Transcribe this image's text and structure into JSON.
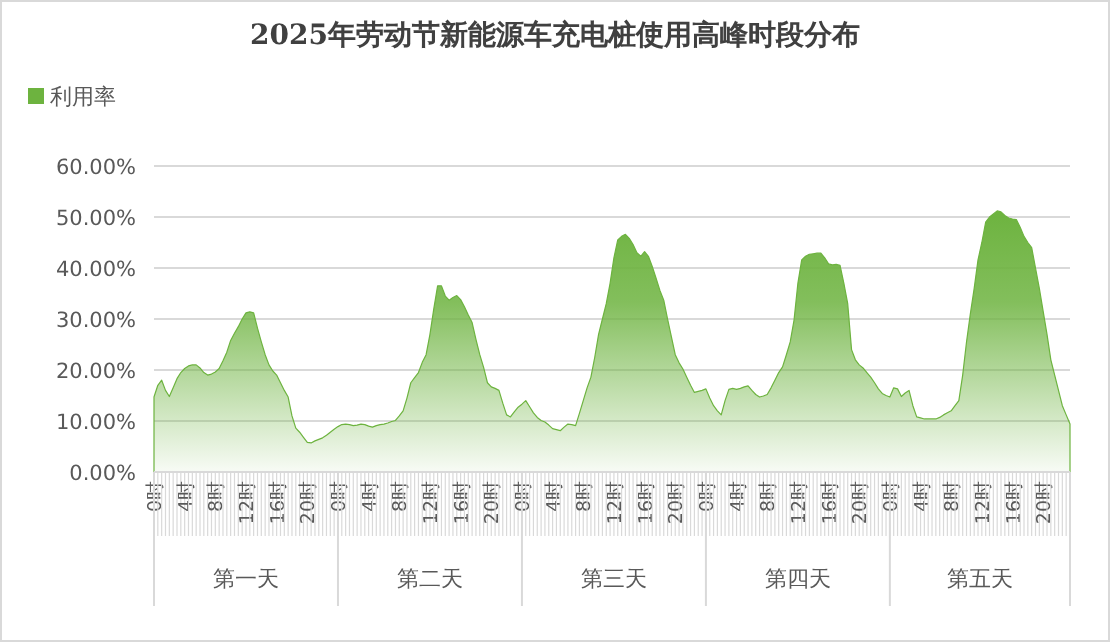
{
  "chart_data": {
    "type": "area",
    "title": "2025年劳动节新能源车充电桩使用高峰时段分布",
    "categories": [
      "0时",
      null,
      null,
      null,
      null,
      null,
      null,
      null,
      "4时",
      null,
      null,
      null,
      null,
      null,
      null,
      null,
      "8时",
      null,
      null,
      null,
      null,
      null,
      null,
      null,
      "12时",
      null,
      null,
      null,
      null,
      null,
      null,
      null,
      "16时",
      null,
      null,
      null,
      null,
      null,
      null,
      null,
      "20时",
      null,
      null,
      null,
      null,
      null,
      null,
      null,
      "0时",
      null,
      null,
      null,
      null,
      null,
      null,
      null,
      "4时",
      null,
      null,
      null,
      null,
      null,
      null,
      null,
      "8时",
      null,
      null,
      null,
      null,
      null,
      null,
      null,
      "12时",
      null,
      null,
      null,
      null,
      null,
      null,
      null,
      "16时",
      null,
      null,
      null,
      null,
      null,
      null,
      null,
      "20时",
      null,
      null,
      null,
      null,
      null,
      null,
      null,
      "0时",
      null,
      null,
      null,
      null,
      null,
      null,
      null,
      "4时",
      null,
      null,
      null,
      null,
      null,
      null,
      null,
      "8时",
      null,
      null,
      null,
      null,
      null,
      null,
      null,
      "12时",
      null,
      null,
      null,
      null,
      null,
      null,
      null,
      "16时",
      null,
      null,
      null,
      null,
      null,
      null,
      null,
      "20时",
      null,
      null,
      null,
      null,
      null,
      null,
      null,
      "0时",
      null,
      null,
      null,
      null,
      null,
      null,
      null,
      "4时",
      null,
      null,
      null,
      null,
      null,
      null,
      null,
      "8时",
      null,
      null,
      null,
      null,
      null,
      null,
      null,
      "12时",
      null,
      null,
      null,
      null,
      null,
      null,
      null,
      "16时",
      null,
      null,
      null,
      null,
      null,
      null,
      null,
      "20时",
      null,
      null,
      null,
      null,
      null,
      null,
      null,
      "0时",
      null,
      null,
      null,
      null,
      null,
      null,
      null,
      "4时",
      null,
      null,
      null,
      null,
      null,
      null,
      null,
      "8时",
      null,
      null,
      null,
      null,
      null,
      null,
      null,
      "12时",
      null,
      null,
      null,
      null,
      null,
      null,
      null,
      "16时",
      null,
      null,
      null,
      null,
      null,
      null,
      null,
      "20时",
      null,
      null,
      null,
      null,
      null,
      null,
      null
    ],
    "series": [
      {
        "name": "利用率",
        "color": "#6db33f",
        "values": [
          14.7,
          17,
          18,
          16,
          14.8,
          16.5,
          18.3,
          19.5,
          20.3,
          20.8,
          21,
          21,
          20.4,
          19.5,
          19,
          19.2,
          19.6,
          20.3,
          21.8,
          23.5,
          25.8,
          27.2,
          28.5,
          30,
          31.2,
          31.4,
          31.2,
          28.2,
          25.5,
          23,
          21,
          19.8,
          19,
          17.5,
          16,
          14.7,
          11,
          8.6,
          7.8,
          6.8,
          5.8,
          5.7,
          6.1,
          6.4,
          6.7,
          7.2,
          7.8,
          8.4,
          8.9,
          9.3,
          9.4,
          9.3,
          9.1,
          9.2,
          9.4,
          9.3,
          9,
          8.8,
          9.1,
          9.3,
          9.4,
          9.6,
          9.9,
          10.1,
          11,
          12,
          14.5,
          17.5,
          18.5,
          19.5,
          21.5,
          23,
          27,
          32,
          36.5,
          36.5,
          34.5,
          33.7,
          34.2,
          34.6,
          33.8,
          32.4,
          30.8,
          29.3,
          26,
          23,
          20.5,
          17.5,
          16.7,
          16.4,
          16,
          13.5,
          11.2,
          10.8,
          11.8,
          12.7,
          13.3,
          14,
          12.8,
          11.6,
          10.7,
          10.1,
          9.8,
          9.2,
          8.5,
          8.3,
          8.1,
          8.8,
          9.4,
          9.3,
          9.1,
          11.5,
          14,
          16.5,
          18.6,
          22.5,
          27,
          30,
          33,
          37,
          42,
          45.5,
          46.2,
          46.6,
          45.8,
          44.6,
          43,
          42.3,
          43.2,
          42.3,
          40.3,
          38,
          35.6,
          33.7,
          30,
          26.5,
          23,
          21.4,
          20.2,
          18.6,
          17,
          15.6,
          15.8,
          16,
          16.3,
          14.5,
          13,
          12,
          11.2,
          14,
          16.2,
          16.4,
          16.2,
          16.4,
          16.7,
          16.9,
          16,
          15.2,
          14.7,
          14.9,
          15.2,
          16.5,
          18,
          19.5,
          20.6,
          23,
          25.5,
          29.8,
          37,
          41.6,
          42.3,
          42.7,
          42.8,
          42.9,
          42.9,
          42,
          40.8,
          40.6,
          40.7,
          40.5,
          37,
          33,
          24,
          22,
          21,
          20.4,
          19.5,
          18.6,
          17.5,
          16.3,
          15.4,
          15,
          14.7,
          16.5,
          16.3,
          14.8,
          15.5,
          16,
          13,
          10.8,
          10.6,
          10.4,
          10.4,
          10.4,
          10.4,
          10.7,
          11.2,
          11.6,
          12,
          13,
          14,
          19,
          25.5,
          31,
          36,
          41.6,
          45,
          49,
          50,
          50.6,
          51.2,
          51,
          50.3,
          49.8,
          49.6,
          49.5,
          48,
          46.2,
          45,
          44,
          40,
          36,
          31.5,
          27,
          22,
          19,
          16,
          13,
          11.2,
          9.4
        ]
      }
    ],
    "ylim": [
      0,
      60
    ],
    "yticks": [
      {
        "value": 0,
        "label": "0.00%"
      },
      {
        "value": 10,
        "label": "10.00%"
      },
      {
        "value": 20,
        "label": "20.00%"
      },
      {
        "value": 30,
        "label": "30.00%"
      },
      {
        "value": 40,
        "label": "40.00%"
      },
      {
        "value": 50,
        "label": "50.00%"
      },
      {
        "value": 60,
        "label": "60.00%"
      }
    ],
    "grid": "y",
    "legend": "top left",
    "annotations": [
      "第一天",
      "第二天",
      "第三天",
      "第四天",
      "第五天"
    ]
  }
}
